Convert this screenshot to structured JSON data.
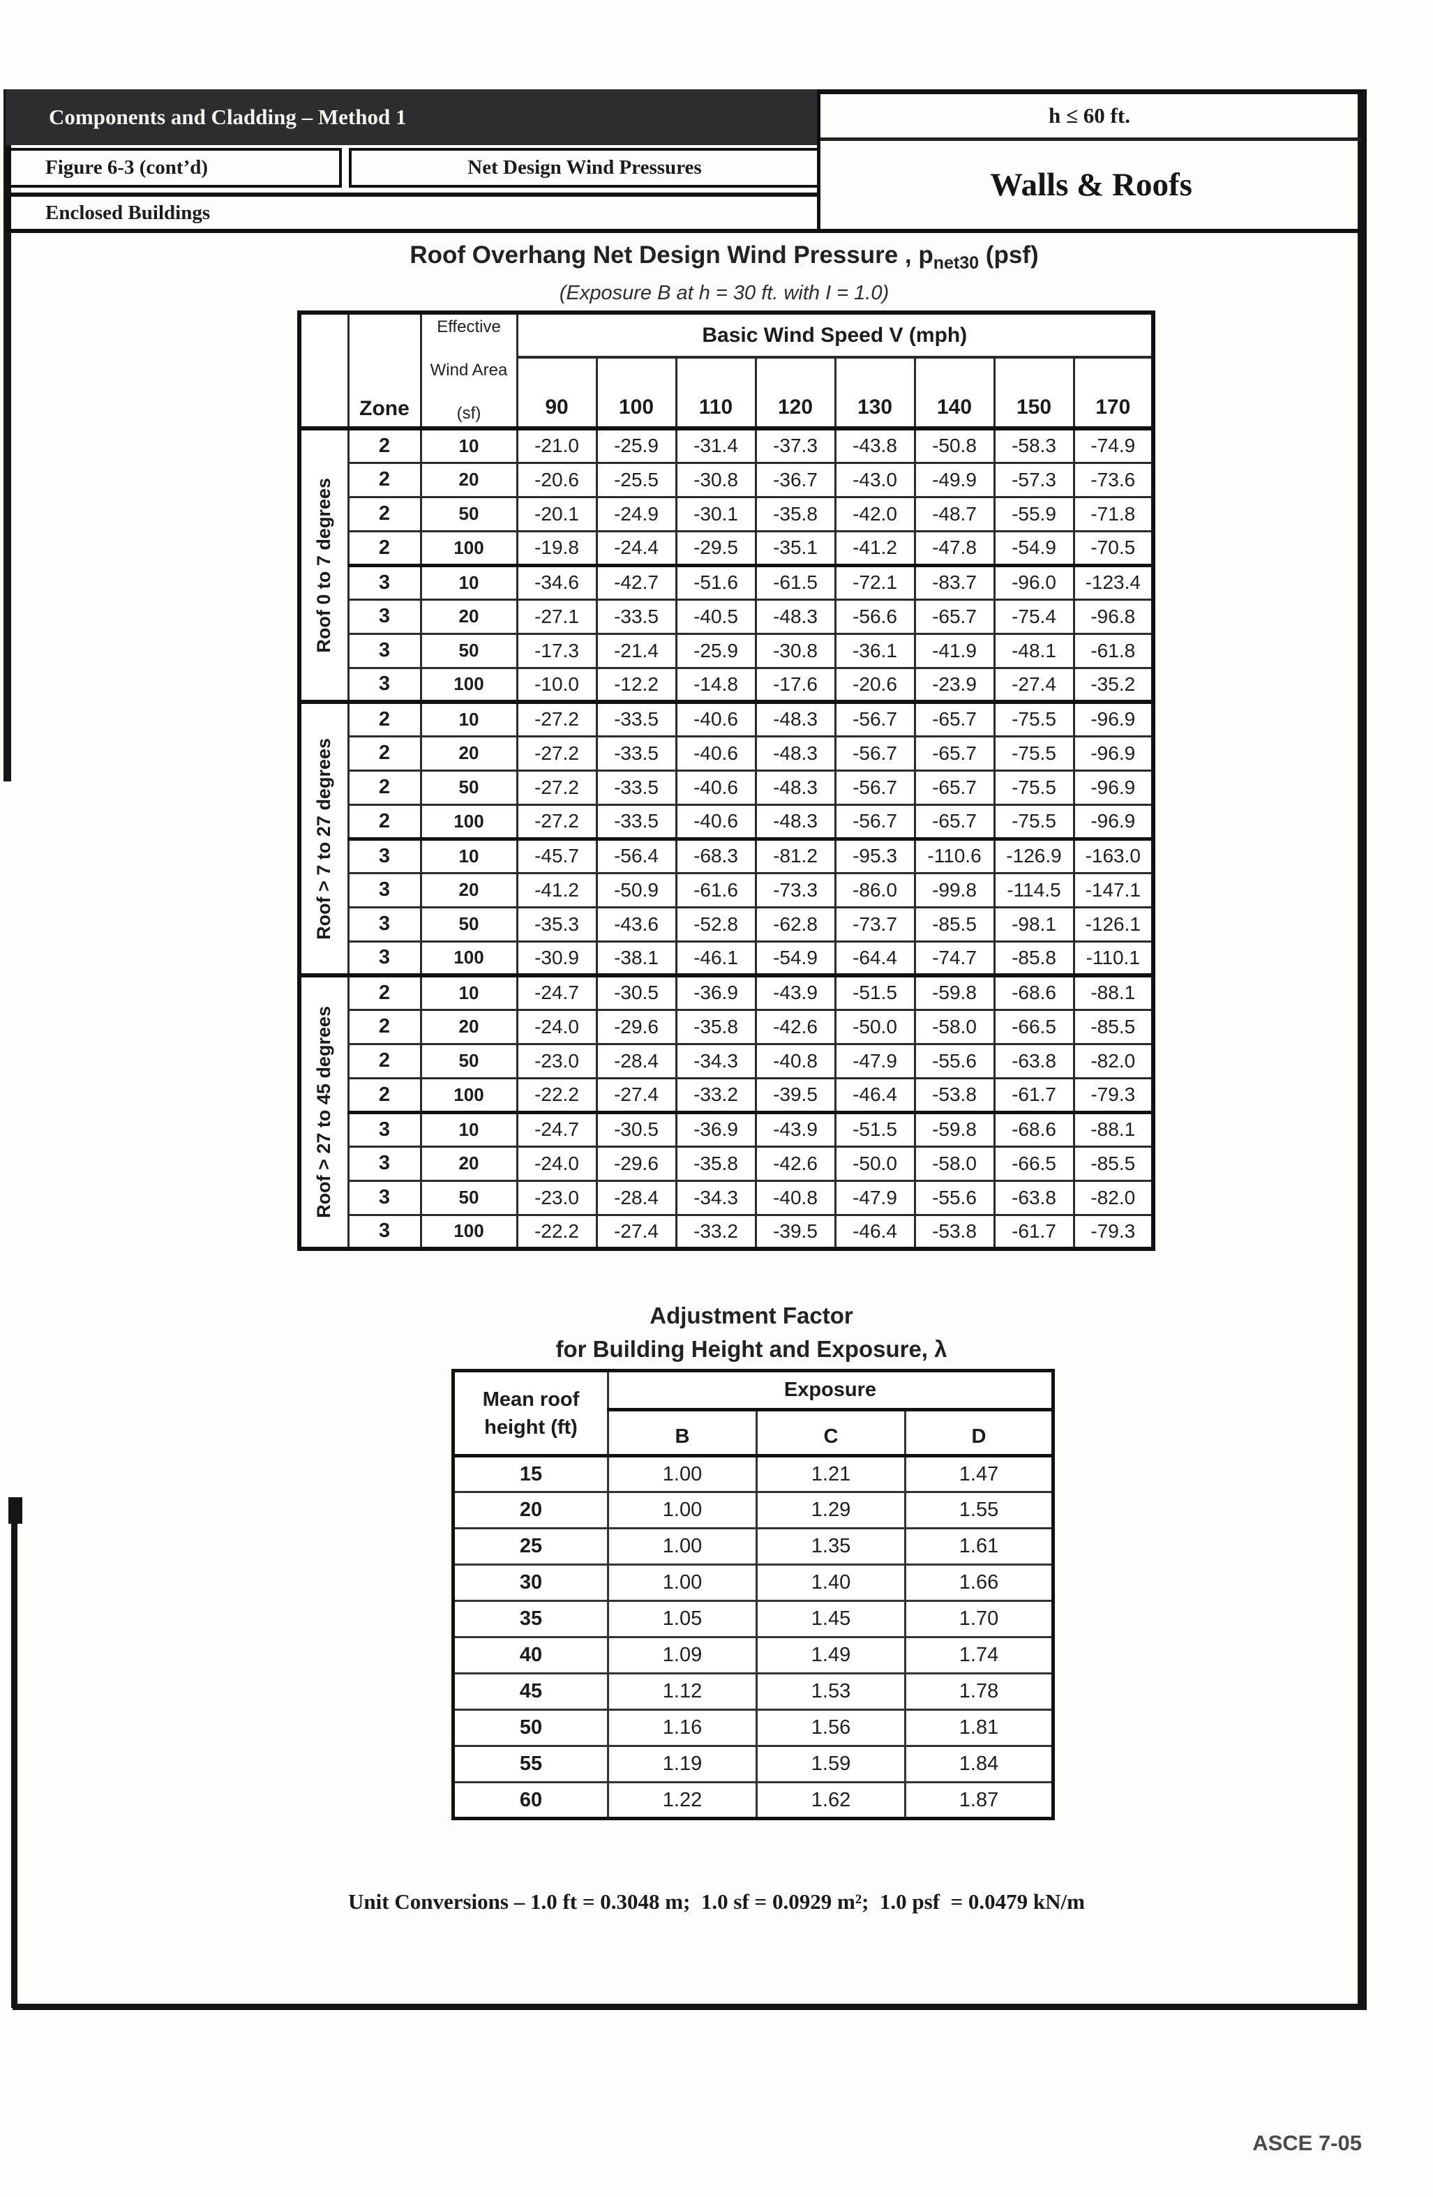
{
  "header": {
    "title": "Components and Cladding – Method 1",
    "height_limit": "h ≤ 60 ft.",
    "figure": "Figure 6-3 (cont’d)",
    "subtitle": "Net Design Wind Pressures",
    "building_type": "Enclosed Buildings",
    "scope": "Walls & Roofs"
  },
  "main_table": {
    "title_prefix": "Roof Overhang Net Design Wind Pressure , p",
    "title_sub": "net30",
    "title_suffix": " (psf)",
    "exposure_note": "(Exposure B at h = 30 ft. with I = 1.0)",
    "speed_header": "Basic Wind Speed V (mph)",
    "zone_header": "Zone",
    "area_header_lines": [
      "Effective",
      "Wind Area",
      "(sf)"
    ],
    "speeds": [
      "90",
      "100",
      "110",
      "120",
      "130",
      "140",
      "150",
      "170"
    ],
    "sections": [
      {
        "label": "Roof 0 to 7 degrees",
        "rows": [
          {
            "zone": "2",
            "area": "10",
            "values": [
              "-21.0",
              "-25.9",
              "-31.4",
              "-37.3",
              "-43.8",
              "-50.8",
              "-58.3",
              "-74.9"
            ]
          },
          {
            "zone": "2",
            "area": "20",
            "values": [
              "-20.6",
              "-25.5",
              "-30.8",
              "-36.7",
              "-43.0",
              "-49.9",
              "-57.3",
              "-73.6"
            ]
          },
          {
            "zone": "2",
            "area": "50",
            "values": [
              "-20.1",
              "-24.9",
              "-30.1",
              "-35.8",
              "-42.0",
              "-48.7",
              "-55.9",
              "-71.8"
            ]
          },
          {
            "zone": "2",
            "area": "100",
            "values": [
              "-19.8",
              "-24.4",
              "-29.5",
              "-35.1",
              "-41.2",
              "-47.8",
              "-54.9",
              "-70.5"
            ]
          },
          {
            "zone": "3",
            "area": "10",
            "values": [
              "-34.6",
              "-42.7",
              "-51.6",
              "-61.5",
              "-72.1",
              "-83.7",
              "-96.0",
              "-123.4"
            ]
          },
          {
            "zone": "3",
            "area": "20",
            "values": [
              "-27.1",
              "-33.5",
              "-40.5",
              "-48.3",
              "-56.6",
              "-65.7",
              "-75.4",
              "-96.8"
            ]
          },
          {
            "zone": "3",
            "area": "50",
            "values": [
              "-17.3",
              "-21.4",
              "-25.9",
              "-30.8",
              "-36.1",
              "-41.9",
              "-48.1",
              "-61.8"
            ]
          },
          {
            "zone": "3",
            "area": "100",
            "values": [
              "-10.0",
              "-12.2",
              "-14.8",
              "-17.6",
              "-20.6",
              "-23.9",
              "-27.4",
              "-35.2"
            ]
          }
        ]
      },
      {
        "label": "Roof > 7 to 27 degrees",
        "rows": [
          {
            "zone": "2",
            "area": "10",
            "values": [
              "-27.2",
              "-33.5",
              "-40.6",
              "-48.3",
              "-56.7",
              "-65.7",
              "-75.5",
              "-96.9"
            ]
          },
          {
            "zone": "2",
            "area": "20",
            "values": [
              "-27.2",
              "-33.5",
              "-40.6",
              "-48.3",
              "-56.7",
              "-65.7",
              "-75.5",
              "-96.9"
            ]
          },
          {
            "zone": "2",
            "area": "50",
            "values": [
              "-27.2",
              "-33.5",
              "-40.6",
              "-48.3",
              "-56.7",
              "-65.7",
              "-75.5",
              "-96.9"
            ]
          },
          {
            "zone": "2",
            "area": "100",
            "values": [
              "-27.2",
              "-33.5",
              "-40.6",
              "-48.3",
              "-56.7",
              "-65.7",
              "-75.5",
              "-96.9"
            ]
          },
          {
            "zone": "3",
            "area": "10",
            "values": [
              "-45.7",
              "-56.4",
              "-68.3",
              "-81.2",
              "-95.3",
              "-110.6",
              "-126.9",
              "-163.0"
            ]
          },
          {
            "zone": "3",
            "area": "20",
            "values": [
              "-41.2",
              "-50.9",
              "-61.6",
              "-73.3",
              "-86.0",
              "-99.8",
              "-114.5",
              "-147.1"
            ]
          },
          {
            "zone": "3",
            "area": "50",
            "values": [
              "-35.3",
              "-43.6",
              "-52.8",
              "-62.8",
              "-73.7",
              "-85.5",
              "-98.1",
              "-126.1"
            ]
          },
          {
            "zone": "3",
            "area": "100",
            "values": [
              "-30.9",
              "-38.1",
              "-46.1",
              "-54.9",
              "-64.4",
              "-74.7",
              "-85.8",
              "-110.1"
            ]
          }
        ]
      },
      {
        "label": "Roof > 27 to 45 degrees",
        "rows": [
          {
            "zone": "2",
            "area": "10",
            "values": [
              "-24.7",
              "-30.5",
              "-36.9",
              "-43.9",
              "-51.5",
              "-59.8",
              "-68.6",
              "-88.1"
            ]
          },
          {
            "zone": "2",
            "area": "20",
            "values": [
              "-24.0",
              "-29.6",
              "-35.8",
              "-42.6",
              "-50.0",
              "-58.0",
              "-66.5",
              "-85.5"
            ]
          },
          {
            "zone": "2",
            "area": "50",
            "values": [
              "-23.0",
              "-28.4",
              "-34.3",
              "-40.8",
              "-47.9",
              "-55.6",
              "-63.8",
              "-82.0"
            ]
          },
          {
            "zone": "2",
            "area": "100",
            "values": [
              "-22.2",
              "-27.4",
              "-33.2",
              "-39.5",
              "-46.4",
              "-53.8",
              "-61.7",
              "-79.3"
            ]
          },
          {
            "zone": "3",
            "area": "10",
            "values": [
              "-24.7",
              "-30.5",
              "-36.9",
              "-43.9",
              "-51.5",
              "-59.8",
              "-68.6",
              "-88.1"
            ]
          },
          {
            "zone": "3",
            "area": "20",
            "values": [
              "-24.0",
              "-29.6",
              "-35.8",
              "-42.6",
              "-50.0",
              "-58.0",
              "-66.5",
              "-85.5"
            ]
          },
          {
            "zone": "3",
            "area": "50",
            "values": [
              "-23.0",
              "-28.4",
              "-34.3",
              "-40.8",
              "-47.9",
              "-55.6",
              "-63.8",
              "-82.0"
            ]
          },
          {
            "zone": "3",
            "area": "100",
            "values": [
              "-22.2",
              "-27.4",
              "-33.2",
              "-39.5",
              "-46.4",
              "-53.8",
              "-61.7",
              "-79.3"
            ]
          }
        ]
      }
    ]
  },
  "adjustment": {
    "title_line1": "Adjustment Factor",
    "title_line2": "for Building Height and Exposure, λ",
    "corner_line1": "Mean roof",
    "corner_line2": "height (ft)",
    "exposure_header": "Exposure",
    "exposure_cols": [
      "B",
      "C",
      "D"
    ],
    "rows": [
      {
        "height": "15",
        "values": [
          "1.00",
          "1.21",
          "1.47"
        ]
      },
      {
        "height": "20",
        "values": [
          "1.00",
          "1.29",
          "1.55"
        ]
      },
      {
        "height": "25",
        "values": [
          "1.00",
          "1.35",
          "1.61"
        ]
      },
      {
        "height": "30",
        "values": [
          "1.00",
          "1.40",
          "1.66"
        ]
      },
      {
        "height": "35",
        "values": [
          "1.05",
          "1.45",
          "1.70"
        ]
      },
      {
        "height": "40",
        "values": [
          "1.09",
          "1.49",
          "1.74"
        ]
      },
      {
        "height": "45",
        "values": [
          "1.12",
          "1.53",
          "1.78"
        ]
      },
      {
        "height": "50",
        "values": [
          "1.16",
          "1.56",
          "1.81"
        ]
      },
      {
        "height": "55",
        "values": [
          "1.19",
          "1.59",
          "1.84"
        ]
      },
      {
        "height": "60",
        "values": [
          "1.22",
          "1.62",
          "1.87"
        ]
      }
    ]
  },
  "footer": {
    "unit_conversions": "Unit Conversions – 1.0 ft = 0.3048 m;  1.0 sf = 0.0929 m²;  1.0 psf  = 0.0479 kN/m",
    "reference": "ASCE 7-05"
  }
}
